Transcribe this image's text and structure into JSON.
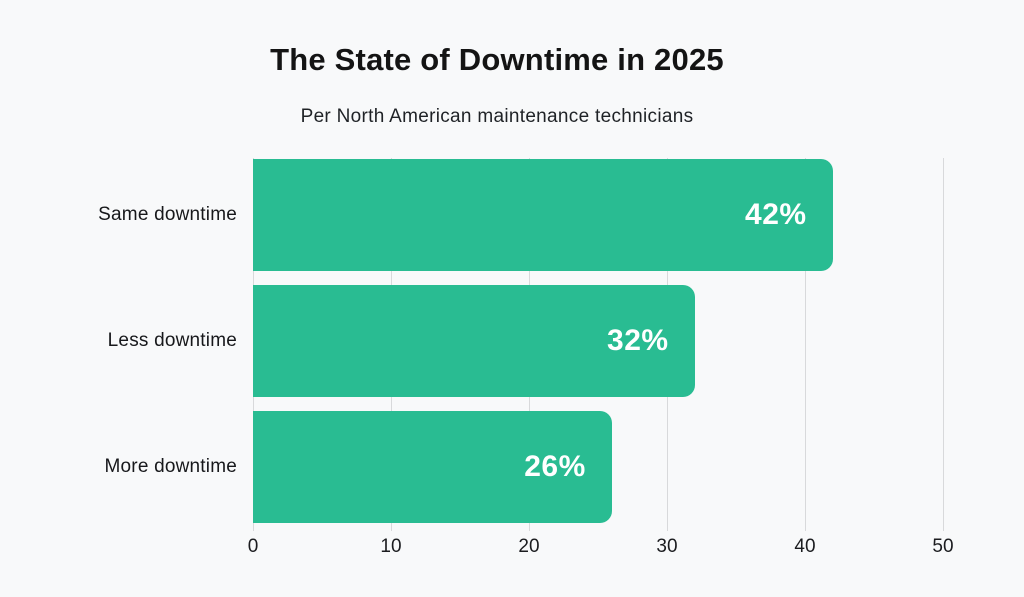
{
  "header": {
    "title": "The State of Downtime in 2025",
    "subtitle": "Per North American maintenance technicians"
  },
  "chart_data": {
    "type": "bar",
    "orientation": "horizontal",
    "title": "The State of Downtime in 2025",
    "subtitle": "Per North American maintenance technicians",
    "categories": [
      "Same downtime",
      "Less downtime",
      "More downtime"
    ],
    "values": [
      42,
      32,
      26
    ],
    "value_labels": [
      "42%",
      "32%",
      "26%"
    ],
    "xlabel": "",
    "ylabel": "",
    "xlim": [
      0,
      50
    ],
    "xticks": [
      0,
      10,
      20,
      30,
      40,
      50
    ],
    "grid": "vertical-only",
    "legend": "none",
    "colors": {
      "bar": "#29bc92",
      "value_label": "#ffffff",
      "gridline": "#d8d9db",
      "background": "#f8f9fa",
      "title_text": "#141414",
      "axis_text": "#1b1c1f"
    }
  }
}
